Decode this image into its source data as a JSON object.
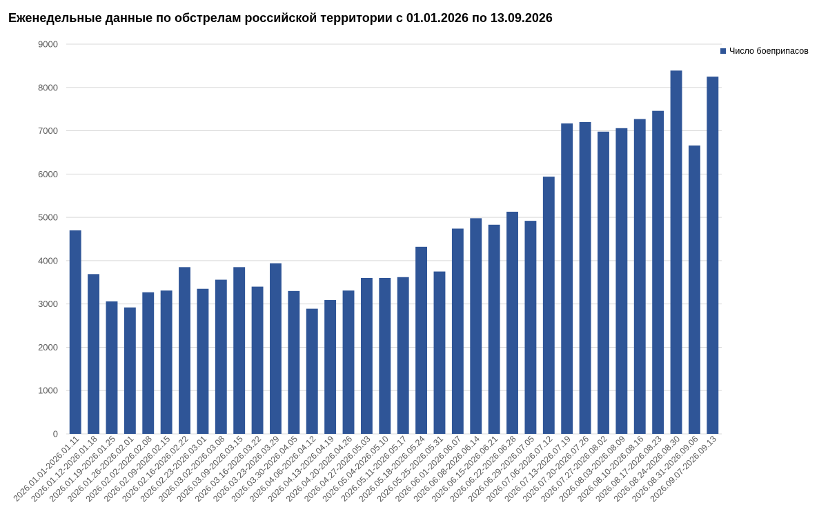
{
  "colors": {
    "bar": "#2f5597",
    "grid": "#d9d9d9",
    "tick_text": "#595959"
  },
  "chart_data": {
    "type": "bar",
    "title": "Еженедельные данные по обстрелам российской территории с 01.01.2026 по 13.09.2026",
    "xlabel": "",
    "ylabel": "",
    "ylim": [
      0,
      9000
    ],
    "yticks": [
      0,
      1000,
      2000,
      3000,
      4000,
      5000,
      6000,
      7000,
      8000,
      9000
    ],
    "grid": true,
    "legend_position": "top-right",
    "categories": [
      "2026.01.01-2026.01.11",
      "2026.01.12-2026.01.18",
      "2026.01.19-2026.01.25",
      "2026.01.26-2026.02.01",
      "2026.02.02-2026.02.08",
      "2026.02.09-2026.02.15",
      "2026.02.16-2026.02.22",
      "2026.02.23-2026.03.01",
      "2026.03.02-2026.03.08",
      "2026.03.09-2026.03.15",
      "2026.03.16-2026.03.22",
      "2026.03.23-2026.03.29",
      "2026.03.30-2026.04.05",
      "2026.04.06-2026.04.12",
      "2026.04.13-2026.04.19",
      "2026.04.20-2026.04.26",
      "2026.04.27-2026.05.03",
      "2026.05.04-2026.05.10",
      "2026.05.11-2026.05.17",
      "2026.05.18-2026.05.24",
      "2026.05.25-2026.05.31",
      "2026.06.01-2026.06.07",
      "2026.06.08-2026.06.14",
      "2026.06.15-2026.06.21",
      "2026.06.22-2026.06.28",
      "2026.06.29-2026.07.05",
      "2026.07.06-2026.07.12",
      "2026.07.13-2026.07.19",
      "2026.07.20-2026.07.26",
      "2026.07.27-2026.08.02",
      "2026.08.03-2026.08.09",
      "2026.08.10-2026.08.16",
      "2026.08.17-2026.08.23",
      "2026.08.24-2026.08.30",
      "2026.08.31-2026.09.06",
      "2026.09.07-2026.09.13"
    ],
    "series": [
      {
        "name": "Число боеприпасов",
        "values": [
          4700,
          3690,
          3060,
          2920,
          3270,
          3310,
          3850,
          3350,
          3560,
          3850,
          3400,
          3940,
          3300,
          2890,
          3090,
          3310,
          3600,
          3600,
          3620,
          4320,
          3750,
          4740,
          4980,
          4830,
          5130,
          4920,
          5940,
          7170,
          7200,
          6980,
          7060,
          7270,
          7460,
          8390,
          6660,
          8250
        ]
      }
    ]
  }
}
